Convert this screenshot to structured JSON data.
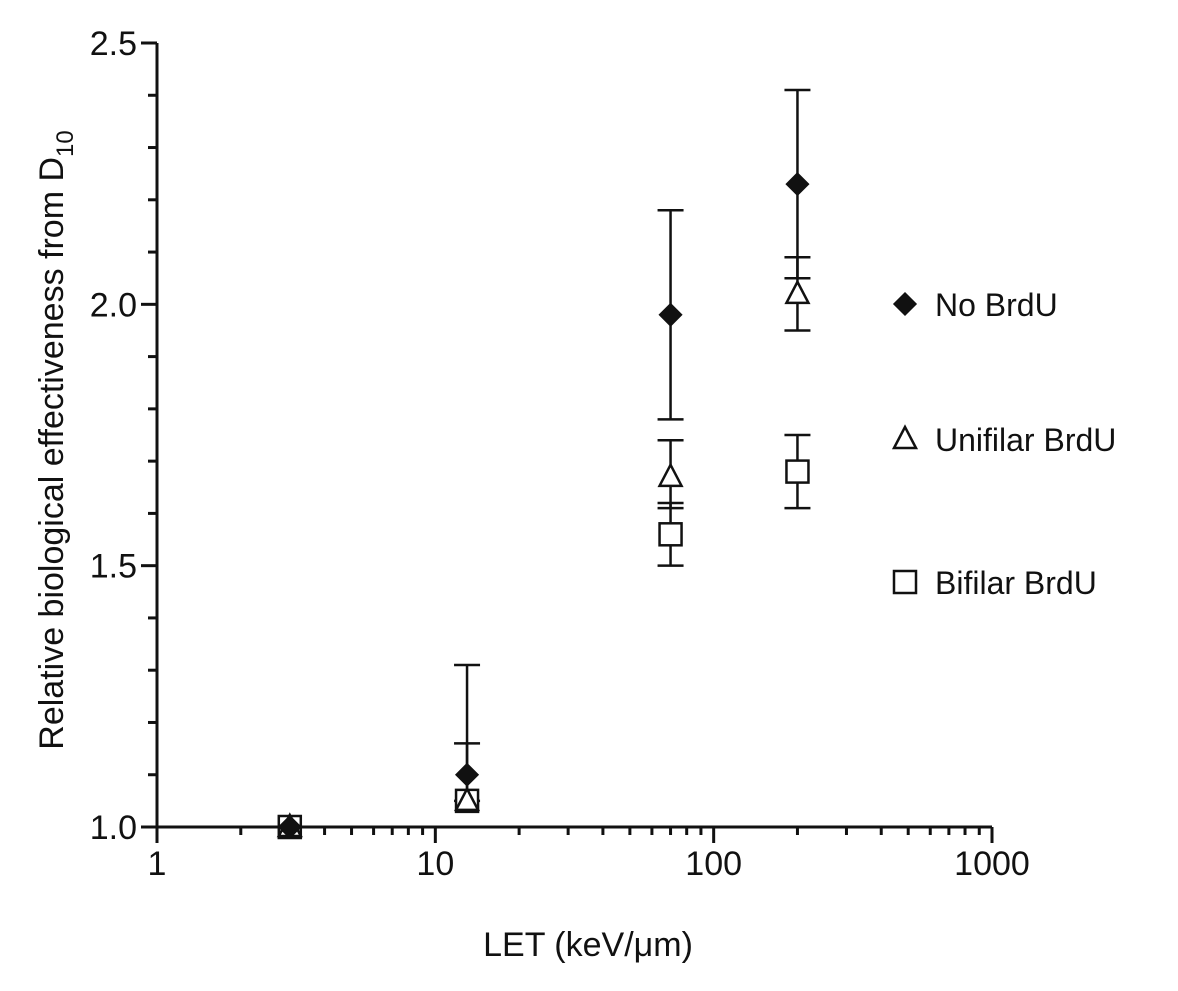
{
  "chart_data": {
    "type": "scatter",
    "xlabel": "LET (keV/μm)",
    "ylabel_main": "Relative biological effectiveness from D",
    "ylabel_sub": "10",
    "xscale": "log",
    "xlim": [
      1,
      1000
    ],
    "ylim": [
      1.0,
      2.5
    ],
    "xticks": [
      "1",
      "10",
      "100",
      "1000"
    ],
    "yticks": [
      "1.0",
      "1.5",
      "2.0",
      "2.5"
    ],
    "grid": false,
    "legend_position": "right",
    "series": [
      {
        "name": "No BrdU",
        "marker": "filled-diamond",
        "points": [
          {
            "x": 3,
            "y": 1.0,
            "err_low": 0,
            "err_high": 0
          },
          {
            "x": 13,
            "y": 1.1,
            "err_low": 0.05,
            "err_high": 0.21
          },
          {
            "x": 70,
            "y": 1.98,
            "err_low": 0.2,
            "err_high": 0.2
          },
          {
            "x": 200,
            "y": 2.23,
            "err_low": 0.18,
            "err_high": 0.18
          }
        ]
      },
      {
        "name": "Unifilar BrdU",
        "marker": "open-triangle",
        "points": [
          {
            "x": 3,
            "y": 1.0,
            "err_low": 0,
            "err_high": 0
          },
          {
            "x": 13,
            "y": 1.05,
            "err_low": 0,
            "err_high": 0.11
          },
          {
            "x": 70,
            "y": 1.67,
            "err_low": 0.06,
            "err_high": 0.07
          },
          {
            "x": 200,
            "y": 2.02,
            "err_low": 0.07,
            "err_high": 0.07
          }
        ]
      },
      {
        "name": "Bifilar BrdU",
        "marker": "open-square",
        "points": [
          {
            "x": 3,
            "y": 1.0,
            "err_low": 0,
            "err_high": 0
          },
          {
            "x": 13,
            "y": 1.05,
            "err_low": 0,
            "err_high": 0
          },
          {
            "x": 70,
            "y": 1.56,
            "err_low": 0.06,
            "err_high": 0.06
          },
          {
            "x": 200,
            "y": 1.68,
            "err_low": 0.07,
            "err_high": 0.07
          }
        ]
      }
    ]
  }
}
